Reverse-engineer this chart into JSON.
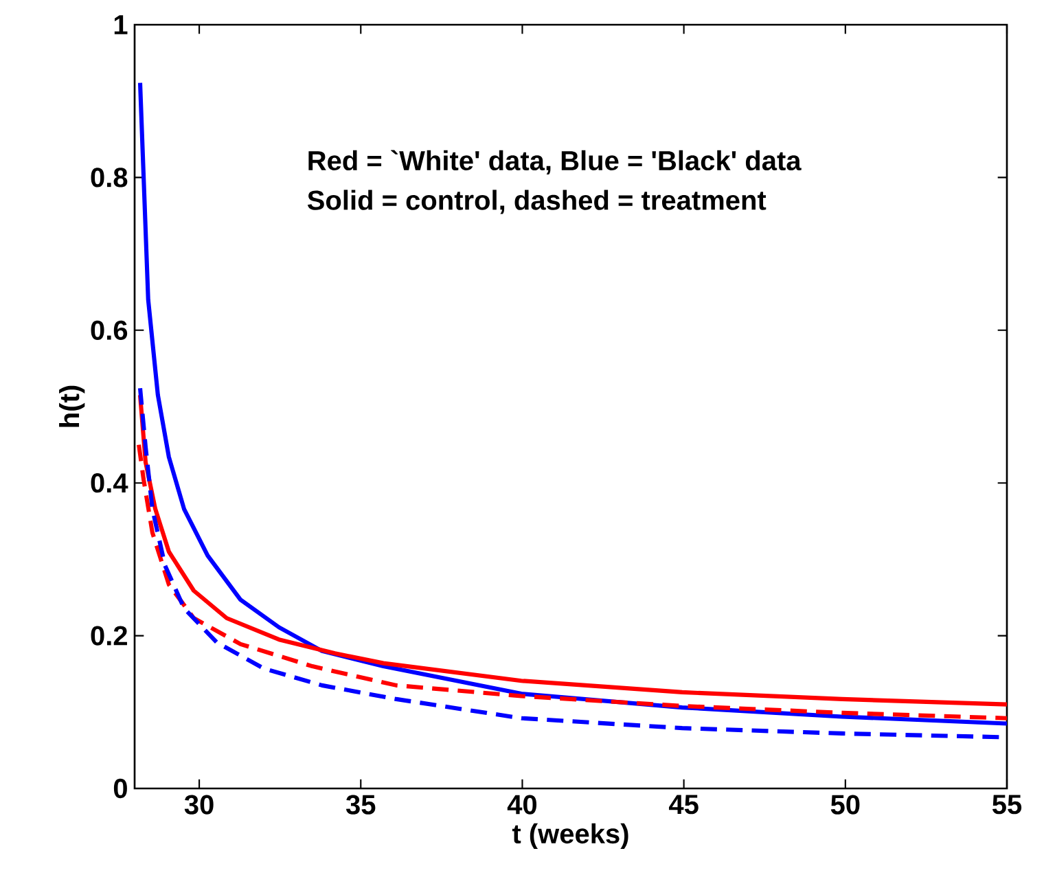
{
  "chart_data": {
    "type": "line",
    "xlabel": "t (weeks)",
    "ylabel": "h(t)",
    "annotations": [
      "Red = `White' data, Blue = 'Black' data",
      "Solid = control, dashed = treatment"
    ],
    "xlim": [
      28,
      55
    ],
    "ylim": [
      0,
      1
    ],
    "xticks": [
      30,
      35,
      40,
      45,
      50,
      55
    ],
    "yticks": [
      0,
      0.2,
      0.4,
      0.6,
      0.8,
      1
    ],
    "grid": false,
    "marker": "none",
    "series": [
      {
        "color": "#0000ff",
        "line_style": "solid",
        "x": [
          28.17,
          28.42,
          28.72,
          29.06,
          29.53,
          30.26,
          31.28,
          32.47,
          33.8,
          35.7,
          39.97,
          44.95,
          49.9,
          55
        ],
        "values": [
          0.924,
          0.64,
          0.515,
          0.434,
          0.366,
          0.305,
          0.247,
          0.211,
          0.18,
          0.16,
          0.124,
          0.106,
          0.094,
          0.085
        ]
      },
      {
        "color": "#ff0000",
        "line_style": "solid",
        "x": [
          28.17,
          28.34,
          28.64,
          29.06,
          29.83,
          30.85,
          32.47,
          34.2,
          35.7,
          39.97,
          44.95,
          49.9,
          55
        ],
        "values": [
          0.515,
          0.427,
          0.366,
          0.31,
          0.259,
          0.223,
          0.195,
          0.177,
          0.164,
          0.141,
          0.126,
          0.117,
          0.11
        ]
      },
      {
        "color": "#ff0000",
        "line_style": "dashed",
        "x": [
          28.13,
          28.28,
          28.55,
          29.06,
          29.83,
          31.28,
          33.5,
          36.1,
          39.97,
          44.95,
          49.9,
          55
        ],
        "values": [
          0.45,
          0.404,
          0.335,
          0.267,
          0.223,
          0.189,
          0.16,
          0.135,
          0.121,
          0.108,
          0.099,
          0.092
        ]
      },
      {
        "color": "#0000ff",
        "line_style": "dashed",
        "x": [
          28.17,
          28.34,
          28.55,
          28.94,
          29.53,
          30.55,
          32.0,
          33.8,
          36.1,
          39.97,
          44.95,
          49.9,
          55
        ],
        "values": [
          0.524,
          0.447,
          0.366,
          0.292,
          0.236,
          0.191,
          0.157,
          0.135,
          0.117,
          0.092,
          0.079,
          0.072,
          0.067
        ]
      }
    ]
  }
}
